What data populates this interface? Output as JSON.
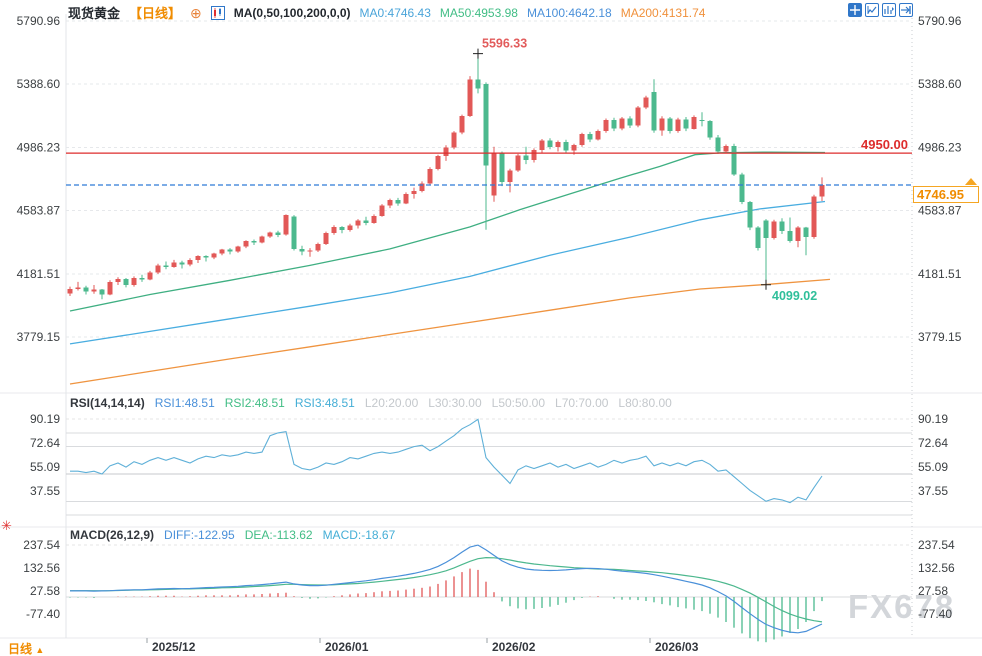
{
  "header": {
    "symbol": "现货黄金",
    "timeframe": "【日线】",
    "expand_icon": "⊕",
    "ma_label": "MA(0,50,100,200,0,0)",
    "ma0": "MA0:4746.43",
    "ma50": "MA50:4953.98",
    "ma100": "MA100:4642.18",
    "ma200": "MA200:4131.74"
  },
  "icons": {
    "toolbar": [
      "pan-crosshair",
      "restore-view",
      "bar-playback",
      "go-to-latest"
    ],
    "header": [
      "circle-plus",
      "candlestick-chart"
    ],
    "left": [
      "indicator-settings"
    ],
    "price_marker": "up-triangle"
  },
  "rsi_header": {
    "label": "RSI(14,14,14)",
    "r1": "RSI1:48.51",
    "r2": "RSI2:48.51",
    "r3": "RSI3:48.51",
    "l20": "L20:20.00",
    "l30": "L30:30.00",
    "l50": "L50:50.00",
    "l70": "L70:70.00",
    "l80": "L80:80.00"
  },
  "macd_header": {
    "label": "MACD(26,12,9)",
    "diff": "DIFF:-122.95",
    "dea": "DEA:-113.62",
    "macd": "MACD:-18.67"
  },
  "bottom": {
    "tf": "日线",
    "arrow": "▲",
    "dates": [
      "2025/12",
      "2026/01",
      "2026/02",
      "2026/03"
    ]
  },
  "watermark": "FX678",
  "colors": {
    "candle_up": "#e25857",
    "candle_down": "#4cb98e",
    "ma50_line": "#3faf82",
    "ma100_line": "#49ade0",
    "ma200_line": "#ef9440",
    "hline_red": "#dd2c2c",
    "lastprice_blue": "#2e7bd6",
    "lastprice_box": "#f5a623",
    "lastprice_text": "#f08c00",
    "rsi_line": "#5fb0d8",
    "diff_line": "#4a90d9",
    "dea_line": "#4db88e",
    "grid": "#e6e8eb",
    "tick_text": "#3c4043"
  },
  "chart_data": {
    "type": "candlestick",
    "title": "现货黄金 日线",
    "months_x": [
      147,
      320,
      487,
      650
    ],
    "main": {
      "price_ticks": [
        5790.96,
        5388.6,
        4986.23,
        4583.87,
        4181.51,
        3779.15
      ],
      "candles": [
        [
          4055,
          4100,
          4040,
          4085
        ],
        [
          4085,
          4130,
          4075,
          4095
        ],
        [
          4095,
          4105,
          4050,
          4070
        ],
        [
          4070,
          4110,
          4055,
          4080
        ],
        [
          4080,
          4085,
          4020,
          4050
        ],
        [
          4050,
          4140,
          4045,
          4130
        ],
        [
          4130,
          4160,
          4110,
          4150
        ],
        [
          4150,
          4155,
          4095,
          4110
        ],
        [
          4110,
          4165,
          4100,
          4155
        ],
        [
          4155,
          4175,
          4130,
          4145
        ],
        [
          4145,
          4200,
          4140,
          4190
        ],
        [
          4190,
          4245,
          4180,
          4235
        ],
        [
          4235,
          4260,
          4210,
          4225
        ],
        [
          4225,
          4270,
          4220,
          4255
        ],
        [
          4255,
          4265,
          4215,
          4240
        ],
        [
          4240,
          4280,
          4230,
          4270
        ],
        [
          4270,
          4300,
          4250,
          4295
        ],
        [
          4295,
          4300,
          4260,
          4285
        ],
        [
          4285,
          4315,
          4275,
          4310
        ],
        [
          4310,
          4340,
          4300,
          4335
        ],
        [
          4335,
          4345,
          4305,
          4325
        ],
        [
          4325,
          4360,
          4315,
          4355
        ],
        [
          4355,
          4395,
          4345,
          4390
        ],
        [
          4390,
          4400,
          4365,
          4380
        ],
        [
          4380,
          4425,
          4375,
          4420
        ],
        [
          4420,
          4450,
          4410,
          4445
        ],
        [
          4445,
          4455,
          4415,
          4430
        ],
        [
          4430,
          4560,
          4425,
          4555
        ],
        [
          4545,
          4555,
          4330,
          4340
        ],
        [
          4340,
          4360,
          4300,
          4325
        ],
        [
          4325,
          4345,
          4290,
          4330
        ],
        [
          4330,
          4380,
          4320,
          4370
        ],
        [
          4370,
          4450,
          4365,
          4440
        ],
        [
          4440,
          4490,
          4430,
          4480
        ],
        [
          4480,
          4485,
          4440,
          4460
        ],
        [
          4460,
          4500,
          4450,
          4490
        ],
        [
          4490,
          4530,
          4470,
          4520
        ],
        [
          4520,
          4545,
          4490,
          4505
        ],
        [
          4505,
          4560,
          4500,
          4550
        ],
        [
          4550,
          4625,
          4545,
          4615
        ],
        [
          4615,
          4660,
          4600,
          4650
        ],
        [
          4650,
          4665,
          4615,
          4630
        ],
        [
          4630,
          4700,
          4625,
          4690
        ],
        [
          4690,
          4730,
          4660,
          4710
        ],
        [
          4710,
          4770,
          4700,
          4755
        ],
        [
          4755,
          4860,
          4750,
          4850
        ],
        [
          4850,
          4940,
          4840,
          4930
        ],
        [
          4930,
          5000,
          4900,
          4985
        ],
        [
          4985,
          5090,
          4975,
          5080
        ],
        [
          5080,
          5195,
          5070,
          5185
        ],
        [
          5185,
          5440,
          5180,
          5420
        ],
        [
          5420,
          5596.33,
          5330,
          5360
        ],
        [
          5390,
          5400,
          4462,
          4870
        ],
        [
          4680,
          4990,
          4640,
          4950
        ],
        [
          4950,
          4960,
          4740,
          4765
        ],
        [
          4765,
          4850,
          4700,
          4840
        ],
        [
          4840,
          4945,
          4830,
          4935
        ],
        [
          4935,
          4990,
          4880,
          4905
        ],
        [
          4905,
          4980,
          4890,
          4970
        ],
        [
          4970,
          5040,
          4950,
          5030
        ],
        [
          5030,
          5045,
          4975,
          4990
        ],
        [
          4990,
          5030,
          4960,
          5020
        ],
        [
          5020,
          5035,
          4950,
          4965
        ],
        [
          4965,
          5010,
          4940,
          5000
        ],
        [
          5000,
          5080,
          4990,
          5070
        ],
        [
          5070,
          5085,
          5020,
          5035
        ],
        [
          5035,
          5100,
          5030,
          5090
        ],
        [
          5090,
          5170,
          5080,
          5160
        ],
        [
          5160,
          5175,
          5090,
          5105
        ],
        [
          5105,
          5180,
          5095,
          5170
        ],
        [
          5170,
          5185,
          5110,
          5125
        ],
        [
          5125,
          5250,
          5115,
          5240
        ],
        [
          5240,
          5315,
          5230,
          5305
        ],
        [
          5340,
          5420,
          5080,
          5095
        ],
        [
          5095,
          5185,
          5060,
          5170
        ],
        [
          5170,
          5180,
          5075,
          5090
        ],
        [
          5090,
          5175,
          5080,
          5165
        ],
        [
          5165,
          5180,
          5090,
          5105
        ],
        [
          5105,
          5190,
          5100,
          5180
        ],
        [
          5160,
          5210,
          5120,
          5155
        ],
        [
          5155,
          5160,
          5035,
          5050
        ],
        [
          5050,
          5065,
          4945,
          4960
        ],
        [
          4960,
          5005,
          4950,
          4995
        ],
        [
          4995,
          5010,
          4805,
          4815
        ],
        [
          4815,
          4825,
          4625,
          4640
        ],
        [
          4640,
          4645,
          4460,
          4475
        ],
        [
          4475,
          4485,
          4330,
          4345
        ],
        [
          4520,
          4530,
          4099.02,
          4410
        ],
        [
          4410,
          4525,
          4400,
          4515
        ],
        [
          4515,
          4535,
          4435,
          4455
        ],
        [
          4455,
          4540,
          4380,
          4390
        ],
        [
          4390,
          4485,
          4350,
          4475
        ],
        [
          4475,
          4480,
          4300,
          4415
        ],
        [
          4415,
          4685,
          4405,
          4675
        ],
        [
          4675,
          4795,
          4645,
          4746.95
        ]
      ],
      "ma50": [
        [
          70,
          3945
        ],
        [
          150,
          4050
        ],
        [
          230,
          4140
        ],
        [
          310,
          4235
        ],
        [
          390,
          4340
        ],
        [
          470,
          4480
        ],
        [
          520,
          4590
        ],
        [
          570,
          4690
        ],
        [
          620,
          4790
        ],
        [
          660,
          4865
        ],
        [
          695,
          4940
        ],
        [
          720,
          4952
        ],
        [
          770,
          4956
        ],
        [
          825,
          4954
        ]
      ],
      "ma100": [
        [
          70,
          3735
        ],
        [
          150,
          3815
        ],
        [
          230,
          3895
        ],
        [
          310,
          3975
        ],
        [
          390,
          4060
        ],
        [
          470,
          4165
        ],
        [
          550,
          4300
        ],
        [
          630,
          4415
        ],
        [
          700,
          4525
        ],
        [
          760,
          4595
        ],
        [
          825,
          4642
        ]
      ],
      "ma200": [
        [
          70,
          3480
        ],
        [
          150,
          3560
        ],
        [
          230,
          3640
        ],
        [
          310,
          3717
        ],
        [
          390,
          3795
        ],
        [
          470,
          3872
        ],
        [
          550,
          3950
        ],
        [
          630,
          4028
        ],
        [
          700,
          4085
        ],
        [
          770,
          4115
        ],
        [
          830,
          4146
        ]
      ]
    },
    "rsi": {
      "ticks": [
        90.19,
        72.64,
        55.09,
        37.55
      ],
      "grid_levels": [
        80,
        70,
        50,
        30,
        20
      ],
      "values": [
        52,
        52,
        51,
        52,
        50,
        56,
        58,
        55,
        59,
        57,
        60,
        62,
        60,
        62,
        60,
        58,
        61,
        63,
        62,
        64,
        63,
        64,
        66,
        65,
        66,
        78,
        80,
        81,
        57,
        54,
        53,
        55,
        58,
        57,
        59,
        62,
        61,
        63,
        65,
        66,
        65,
        66,
        68,
        70,
        71,
        67,
        70,
        74,
        78,
        83,
        86,
        90,
        62,
        55,
        49,
        43,
        53,
        56,
        54,
        56,
        58,
        55,
        57,
        54,
        56,
        58,
        55,
        57,
        60,
        58,
        60,
        61,
        63,
        56,
        58,
        56,
        58,
        56,
        59,
        60,
        57,
        52,
        53,
        48,
        43,
        38,
        34,
        30,
        32,
        31,
        29,
        33,
        31,
        40,
        48.51
      ]
    },
    "macd": {
      "ticks": [
        237.54,
        132.56,
        27.58,
        -77.4
      ],
      "diff": [
        28,
        28,
        28,
        27,
        28,
        29,
        31,
        32,
        33,
        33,
        35,
        37,
        38,
        39,
        38,
        39,
        41,
        43,
        44,
        46,
        47,
        49,
        52,
        54,
        57,
        60,
        64,
        68,
        60,
        55,
        52,
        52,
        54,
        58,
        62,
        66,
        70,
        74,
        79,
        85,
        90,
        95,
        101,
        108,
        116,
        126,
        140,
        158,
        180,
        205,
        228,
        237,
        215,
        190,
        165,
        148,
        136,
        128,
        124,
        122,
        121,
        122,
        124,
        127,
        130,
        131,
        130,
        127,
        122,
        118,
        115,
        112,
        108,
        102,
        95,
        88,
        80,
        72,
        64,
        55,
        42,
        25,
        5,
        -20,
        -48,
        -76,
        -102,
        -125,
        -140,
        -152,
        -160,
        -163,
        -157,
        -140,
        -122.95
      ],
      "dea": [
        29,
        29,
        29,
        29,
        28,
        29,
        30,
        31,
        32,
        32,
        33,
        34,
        35,
        36,
        37,
        37,
        38,
        39,
        40,
        42,
        43,
        44,
        46,
        48,
        50,
        52,
        55,
        58,
        58,
        57,
        56,
        55,
        55,
        56,
        58,
        60,
        62,
        65,
        68,
        72,
        76,
        80,
        84,
        89,
        95,
        102,
        110,
        120,
        133,
        148,
        163,
        175,
        180,
        179,
        175,
        169,
        162,
        156,
        151,
        147,
        143,
        140,
        137,
        134,
        132,
        130,
        128,
        127,
        126,
        124,
        121,
        119,
        117,
        114,
        111,
        107,
        103,
        98,
        93,
        87,
        80,
        72,
        62,
        50,
        35,
        18,
        -1,
        -22,
        -43,
        -62,
        -78,
        -90,
        -100,
        -108,
        -113.62
      ],
      "histogram_rule": "2*(diff-dea)"
    },
    "annotations": {
      "high_label": "5596.33",
      "high_value": 5596.33,
      "low_label": "4099.02",
      "low_value": 4099.02,
      "hline_label": "4950.00",
      "hline_value": 4950.0,
      "last_label": "4746.95",
      "last_value": 4746.95
    }
  }
}
